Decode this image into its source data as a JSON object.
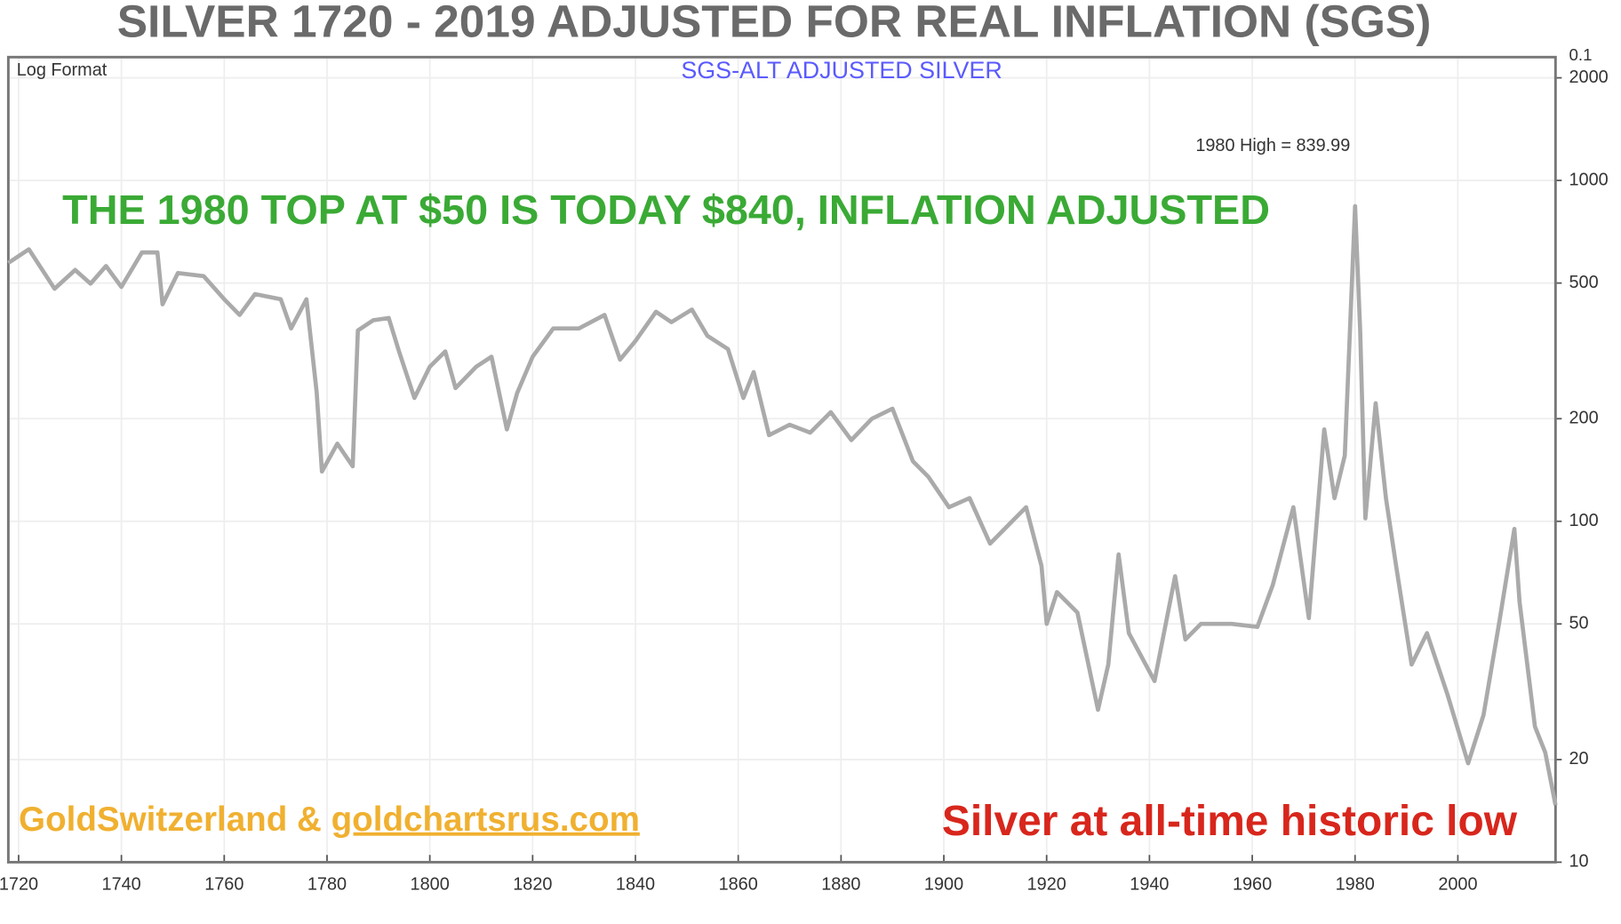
{
  "chart_data": {
    "type": "line",
    "title": "SILVER 1720 - 2019 ADJUSTED FOR REAL INFLATION (SGS)",
    "subtitle": "Log Format",
    "corner_label": "0.1",
    "annotations": [
      {
        "text": "1980 High = 839.99"
      },
      {
        "text": "THE 1980 TOP AT $50 IS TODAY $840, INFLATION ADJUSTED",
        "color": "#3aaa35"
      },
      {
        "text": "Silver at all-time historic low",
        "color": "#d8261c"
      }
    ],
    "source": {
      "prefix": "GoldSwitzerland & ",
      "link": "goldchartsrus.com",
      "color": "#f0b030"
    },
    "x": [
      1718,
      1722,
      1727,
      1731,
      1734,
      1737,
      1740,
      1744,
      1747,
      1748,
      1751,
      1756,
      1760,
      1763,
      1766,
      1771,
      1773,
      1776,
      1778,
      1779,
      1782,
      1785,
      1786,
      1789,
      1792,
      1794,
      1797,
      1800,
      1803,
      1805,
      1809,
      1812,
      1815,
      1817,
      1820,
      1824,
      1829,
      1834,
      1837,
      1840,
      1844,
      1847,
      1851,
      1854,
      1858,
      1861,
      1863,
      1866,
      1870,
      1874,
      1878,
      1882,
      1886,
      1890,
      1894,
      1897,
      1901,
      1905,
      1909,
      1913,
      1916,
      1919,
      1920,
      1922,
      1926,
      1930,
      1932,
      1934,
      1936,
      1941,
      1945,
      1947,
      1950,
      1956,
      1961,
      1964,
      1968,
      1971,
      1974,
      1976,
      1978,
      1980,
      1981,
      1982,
      1984,
      1986,
      1988,
      1991,
      1994,
      1998,
      2002,
      2005,
      2008,
      2011,
      2012,
      2015,
      2017,
      2019
    ],
    "series": [
      {
        "name": "SGS-ALT ADJUSTED SILVER",
        "color": "#aaaaaa",
        "values": [
          573,
          628,
          481,
          546,
          498,
          561,
          487,
          615,
          615,
          433,
          535,
          524,
          448,
          403,
          464,
          448,
          368,
          448,
          238,
          140,
          169,
          145,
          363,
          389,
          395,
          315,
          230,
          284,
          315,
          246,
          284,
          304,
          186,
          238,
          304,
          368,
          368,
          403,
          298,
          338,
          412,
          384,
          418,
          350,
          320,
          230,
          274,
          179,
          192,
          182,
          209,
          173,
          200,
          214,
          150,
          135,
          110,
          117,
          86,
          99,
          110,
          74,
          50,
          62,
          54,
          28,
          38,
          80,
          47,
          34,
          69,
          45,
          50,
          50,
          49,
          65,
          110,
          52,
          186,
          117,
          156,
          840,
          363,
          102,
          222,
          117,
          74,
          38,
          47,
          31,
          19.5,
          27,
          50,
          95,
          58,
          25,
          21,
          14.7
        ]
      }
    ],
    "xlim": [
      1718,
      2019
    ],
    "xticks": [
      1720,
      1740,
      1760,
      1780,
      1800,
      1820,
      1840,
      1860,
      1880,
      1900,
      1920,
      1940,
      1960,
      1980,
      2000
    ],
    "ylim": [
      10,
      2300
    ],
    "yticks": [
      10,
      20,
      50,
      100,
      200,
      500,
      1000,
      2000
    ],
    "log_y": true,
    "grid": true
  }
}
